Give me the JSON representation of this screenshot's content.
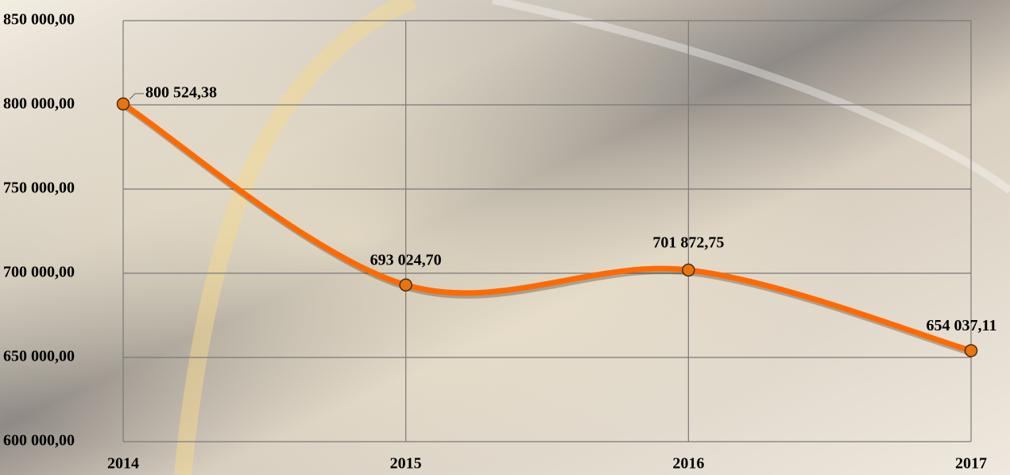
{
  "chart_data": {
    "type": "line",
    "categories": [
      "2014",
      "2015",
      "2016",
      "2017"
    ],
    "values": [
      800524.38,
      693024.7,
      701872.75,
      654037.11
    ],
    "value_labels": [
      "800 524,38",
      "693 024,70",
      "701 872,75",
      "654 037,11"
    ],
    "color": "#ff6a00",
    "marker_color": "#e8750f",
    "ylim": [
      600000,
      850000
    ],
    "yticks": [
      {
        "value": 600000,
        "label": "600 000,00"
      },
      {
        "value": 650000,
        "label": "650 000,00"
      },
      {
        "value": 700000,
        "label": "700 000,00"
      },
      {
        "value": 750000,
        "label": "750 000,00"
      },
      {
        "value": 800000,
        "label": "800 000,00"
      },
      {
        "value": 850000,
        "label": "850 000,00"
      }
    ],
    "grid": true
  }
}
